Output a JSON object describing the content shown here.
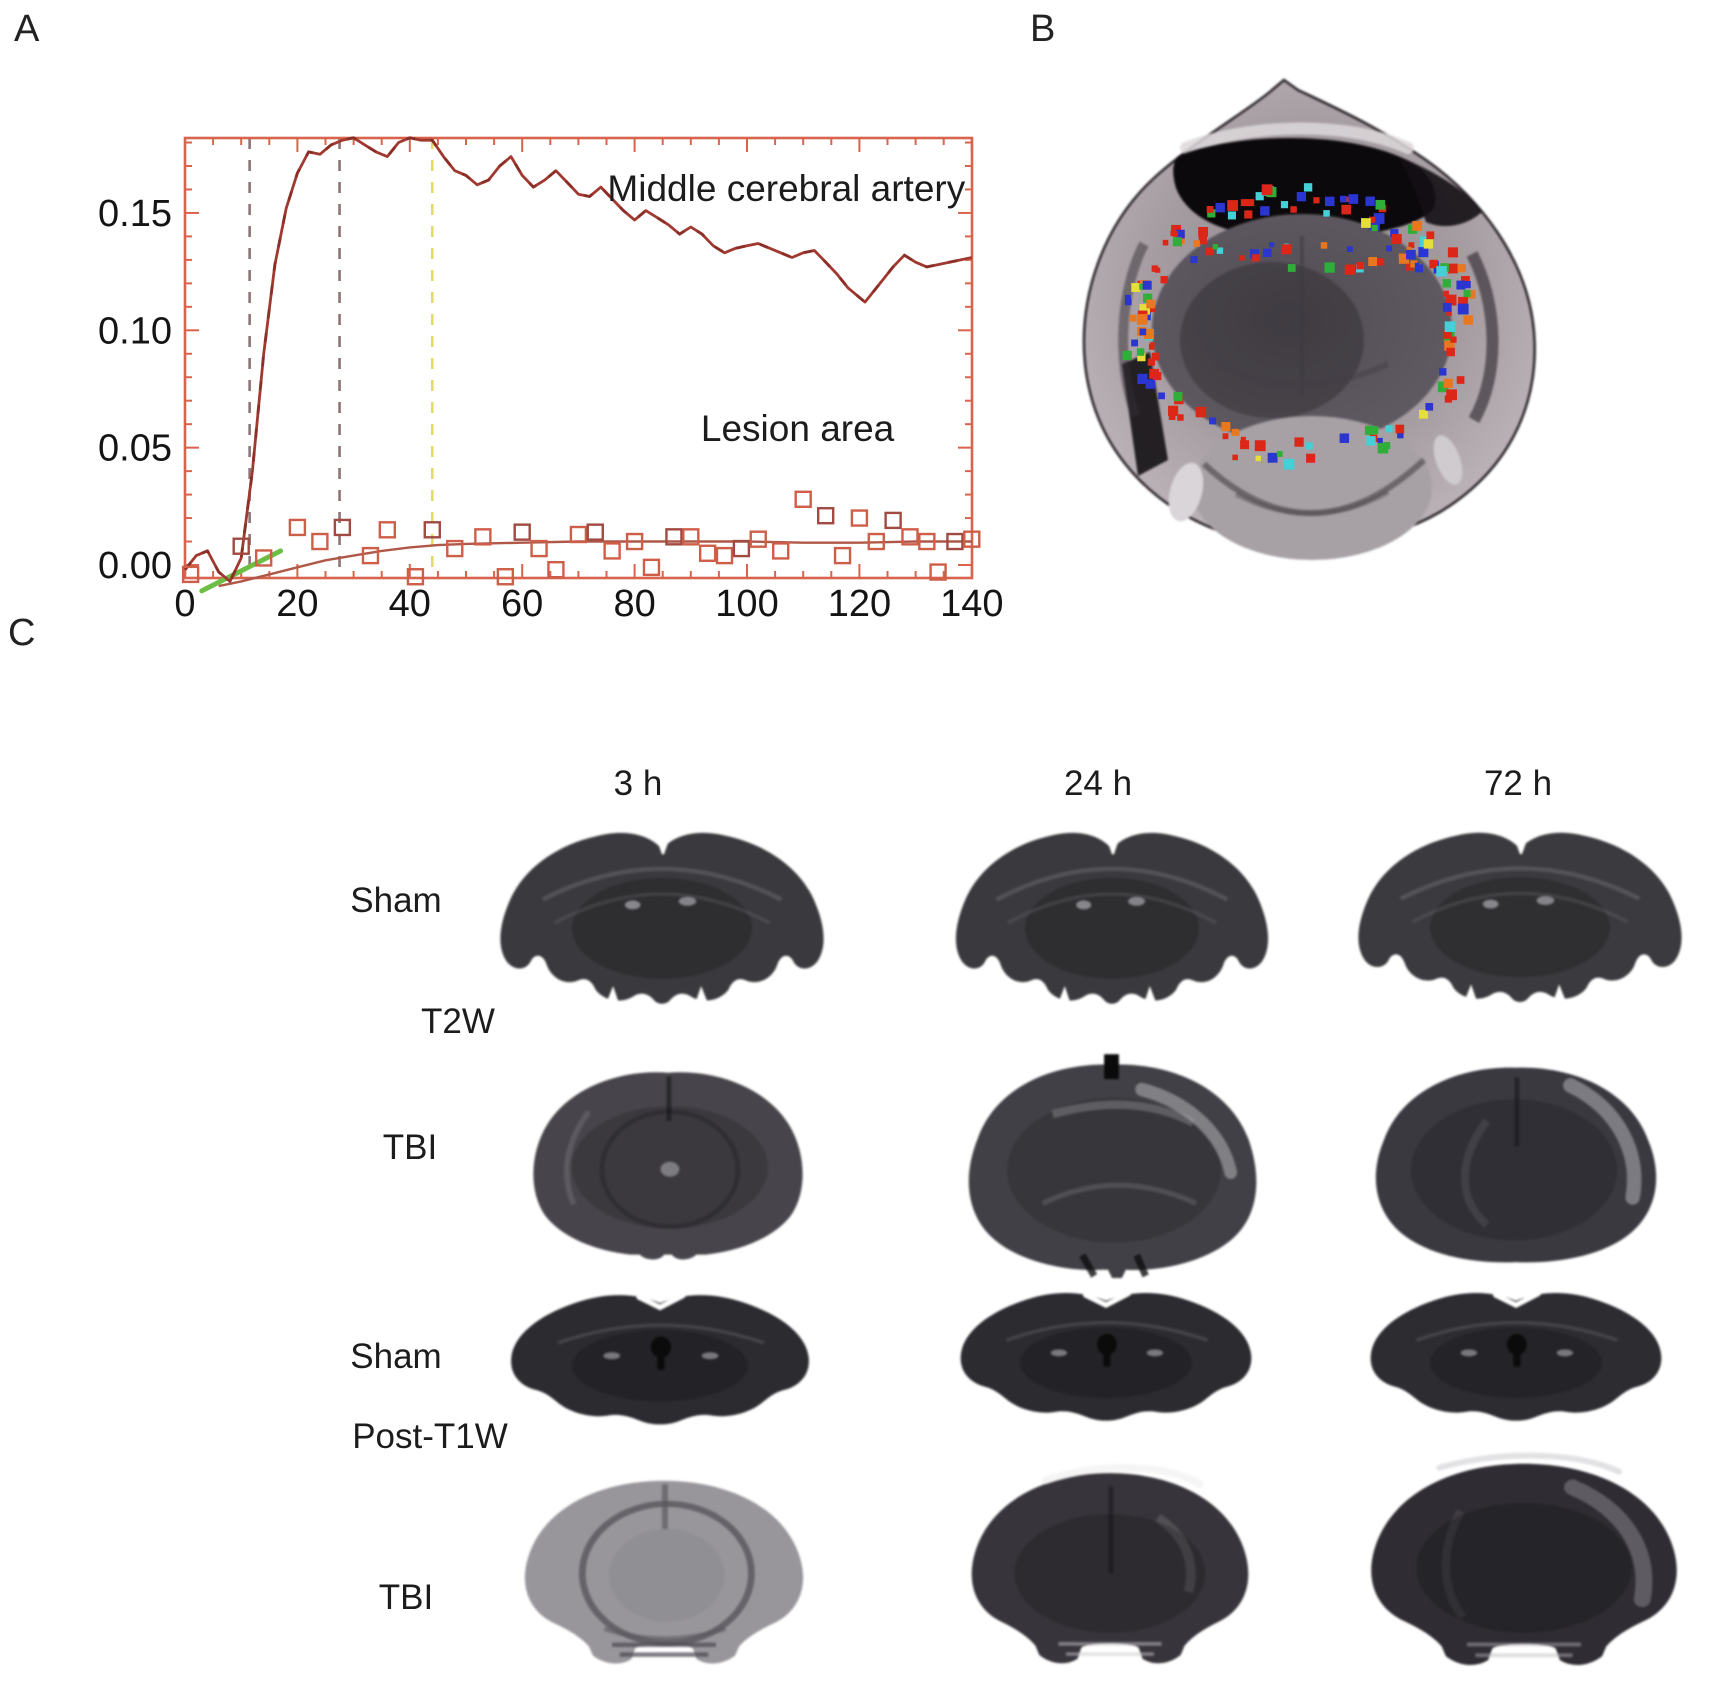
{
  "figure": {
    "panel_a_label": "A",
    "panel_b_label": "B",
    "panel_c_label": "C"
  },
  "chart_data": {
    "type": "line",
    "title": "",
    "xlabel": "",
    "ylabel": "",
    "xlim": [
      0,
      140
    ],
    "ylim": [
      -0.0055,
      0.182
    ],
    "grid": false,
    "axis_color": "#d8644e",
    "x_ticks": [
      0,
      20,
      40,
      60,
      80,
      100,
      120,
      140
    ],
    "x_tick_labels": [
      "0",
      "20",
      "40",
      "60",
      "80",
      "100",
      "120",
      "140"
    ],
    "y_ticks": [
      0,
      0.05,
      0.1,
      0.15
    ],
    "y_tick_labels": [
      "0.00",
      "0.05",
      "0.10",
      "0.15"
    ],
    "annotations": {
      "mca": {
        "text": "Middle cerebral artery",
        "x": 107,
        "y": 0.16
      },
      "lesion": {
        "text": "Lesion area",
        "x": 109,
        "y": 0.058
      }
    },
    "vlines": [
      {
        "x": 11.5,
        "color": "#8d7476",
        "style": "dashed"
      },
      {
        "x": 27.5,
        "color": "#8d7476",
        "style": "dashed"
      },
      {
        "x": 44,
        "color": "#e3dc63",
        "style": "dashed"
      }
    ],
    "green_segment": {
      "x1": 3,
      "y1": -0.011,
      "x2": 17,
      "y2": 0.006,
      "color": "#6cbf44"
    },
    "series": [
      {
        "name": "Middle cerebral artery",
        "type": "line",
        "color": "#a03a31",
        "points": [
          [
            0,
            -0.002
          ],
          [
            2,
            0.004
          ],
          [
            4,
            0.006
          ],
          [
            6,
            -0.003
          ],
          [
            8,
            -0.007
          ],
          [
            10,
            0.003
          ],
          [
            12,
            0.04
          ],
          [
            14,
            0.09
          ],
          [
            16,
            0.128
          ],
          [
            18,
            0.152
          ],
          [
            20,
            0.167
          ],
          [
            22,
            0.176
          ],
          [
            24,
            0.175
          ],
          [
            26,
            0.179
          ],
          [
            28,
            0.181
          ],
          [
            30,
            0.182
          ],
          [
            32,
            0.179
          ],
          [
            34,
            0.176
          ],
          [
            36,
            0.174
          ],
          [
            38,
            0.18
          ],
          [
            40,
            0.182
          ],
          [
            42,
            0.181
          ],
          [
            44,
            0.181
          ],
          [
            46,
            0.174
          ],
          [
            48,
            0.168
          ],
          [
            50,
            0.166
          ],
          [
            52,
            0.162
          ],
          [
            54,
            0.164
          ],
          [
            56,
            0.17
          ],
          [
            58,
            0.174
          ],
          [
            60,
            0.166
          ],
          [
            62,
            0.161
          ],
          [
            64,
            0.164
          ],
          [
            66,
            0.168
          ],
          [
            68,
            0.163
          ],
          [
            70,
            0.158
          ],
          [
            72,
            0.157
          ],
          [
            74,
            0.161
          ],
          [
            76,
            0.156
          ],
          [
            78,
            0.151
          ],
          [
            80,
            0.147
          ],
          [
            82,
            0.151
          ],
          [
            84,
            0.148
          ],
          [
            86,
            0.145
          ],
          [
            88,
            0.141
          ],
          [
            90,
            0.144
          ],
          [
            92,
            0.141
          ],
          [
            94,
            0.136
          ],
          [
            96,
            0.133
          ],
          [
            98,
            0.135
          ],
          [
            100,
            0.136
          ],
          [
            102,
            0.137
          ],
          [
            104,
            0.135
          ],
          [
            106,
            0.133
          ],
          [
            108,
            0.131
          ],
          [
            110,
            0.133
          ],
          [
            112,
            0.134
          ],
          [
            114,
            0.129
          ],
          [
            116,
            0.124
          ],
          [
            118,
            0.118
          ],
          [
            120,
            0.114
          ],
          [
            121,
            0.112
          ],
          [
            122,
            0.115
          ],
          [
            124,
            0.121
          ],
          [
            126,
            0.127
          ],
          [
            128,
            0.132
          ],
          [
            130,
            0.129
          ],
          [
            132,
            0.127
          ],
          [
            134,
            0.128
          ],
          [
            136,
            0.129
          ],
          [
            138,
            0.13
          ],
          [
            140,
            0.131
          ]
        ]
      },
      {
        "name": "Lesion area trend",
        "type": "line",
        "color": "#b05848",
        "points": [
          [
            6,
            -0.009
          ],
          [
            10,
            -0.007
          ],
          [
            15,
            -0.004
          ],
          [
            20,
            -0.001
          ],
          [
            25,
            0.002
          ],
          [
            30,
            0.004
          ],
          [
            35,
            0.006
          ],
          [
            40,
            0.0075
          ],
          [
            45,
            0.0085
          ],
          [
            50,
            0.009
          ],
          [
            60,
            0.0095
          ],
          [
            70,
            0.01
          ],
          [
            80,
            0.01
          ],
          [
            90,
            0.01
          ],
          [
            100,
            0.01
          ],
          [
            110,
            0.0095
          ],
          [
            120,
            0.0095
          ],
          [
            130,
            0.01
          ],
          [
            140,
            0.01
          ]
        ]
      },
      {
        "name": "Lesion area",
        "type": "scatter",
        "marker": "open-square",
        "color": "#cf5e49",
        "points": [
          [
            1,
            -0.004
          ],
          [
            10,
            0.008
          ],
          [
            14,
            0.003
          ],
          [
            20,
            0.016
          ],
          [
            24,
            0.01
          ],
          [
            28,
            0.016
          ],
          [
            33,
            0.004
          ],
          [
            36,
            0.015
          ],
          [
            41,
            -0.005
          ],
          [
            44,
            0.015
          ],
          [
            48,
            0.007
          ],
          [
            53,
            0.012
          ],
          [
            57,
            -0.005
          ],
          [
            60,
            0.014
          ],
          [
            63,
            0.007
          ],
          [
            66,
            -0.002
          ],
          [
            70,
            0.013
          ],
          [
            73,
            0.014
          ],
          [
            76,
            0.006
          ],
          [
            80,
            0.01
          ],
          [
            83,
            -0.001
          ],
          [
            87,
            0.012
          ],
          [
            90,
            0.012
          ],
          [
            93,
            0.005
          ],
          [
            96,
            0.004
          ],
          [
            99,
            0.007
          ],
          [
            102,
            0.011
          ],
          [
            106,
            0.006
          ],
          [
            110,
            0.028
          ],
          [
            114,
            0.021
          ],
          [
            117,
            0.004
          ],
          [
            120,
            0.02
          ],
          [
            123,
            0.01
          ],
          [
            126,
            0.019
          ],
          [
            129,
            0.012
          ],
          [
            132,
            0.01
          ],
          [
            134,
            -0.003
          ],
          [
            137,
            0.01
          ],
          [
            140,
            0.011
          ]
        ]
      }
    ]
  },
  "panel_b": {
    "speckle_colors": [
      {
        "c": "#dc2718",
        "w": 46
      },
      {
        "c": "#2b35cf",
        "w": 20
      },
      {
        "c": "#2fae3a",
        "w": 11
      },
      {
        "c": "#45cfd6",
        "w": 8
      },
      {
        "c": "#e6de3a",
        "w": 7
      },
      {
        "c": "#e87820",
        "w": 8
      }
    ]
  },
  "panel_c": {
    "col_headers": [
      "3 h",
      "24 h",
      "72 h"
    ],
    "row_labels": [
      "Sham",
      "T2W",
      "TBI",
      "Sham",
      "Post-T1W",
      "TBI"
    ],
    "cells": [
      {
        "label": "Sham T2W 3 h"
      },
      {
        "label": "Sham T2W 24 h"
      },
      {
        "label": "Sham T2W 72 h"
      },
      {
        "label": "TBI T2W 3 h"
      },
      {
        "label": "TBI T2W 24 h"
      },
      {
        "label": "TBI T2W 72 h"
      },
      {
        "label": "Sham Post-T1W 3 h"
      },
      {
        "label": "Sham Post-T1W 24 h"
      },
      {
        "label": "Sham Post-T1W 72 h"
      },
      {
        "label": "TBI Post-T1W 3 h"
      },
      {
        "label": "TBI Post-T1W 24 h"
      },
      {
        "label": "TBI Post-T1W 72 h"
      }
    ]
  }
}
